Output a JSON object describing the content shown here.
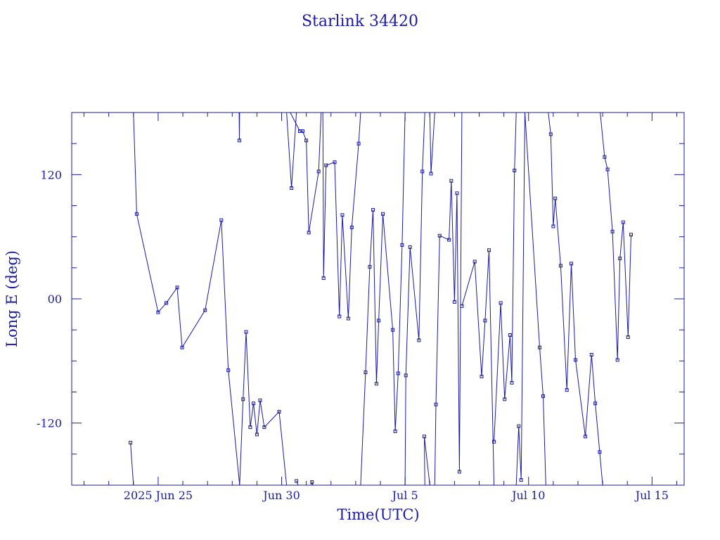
{
  "chart_data": {
    "type": "line",
    "title": "Starlink 34420",
    "xlabel": "Time(UTC)",
    "ylabel": "Long E (deg)",
    "colors": {
      "line": "#1a1aa6",
      "frame": "#1a1aa6",
      "background": "#ffffff"
    },
    "x_unit": "days since 2025 Jun 25 00:00 UTC",
    "xlim": [
      -3.5,
      21.3
    ],
    "ylim": [
      -180,
      180
    ],
    "grid": false,
    "x_ticks": [
      {
        "label": "2025 Jun 25",
        "value": 0
      },
      {
        "label": "Jun 30",
        "value": 5
      },
      {
        "label": "Jul 5",
        "value": 10
      },
      {
        "label": "Jul 10",
        "value": 15
      },
      {
        "label": "Jul 15",
        "value": 20
      }
    ],
    "y_ticks": [
      {
        "label": "-120",
        "value": -120
      },
      {
        "label": "00",
        "value": 0
      },
      {
        "label": "120",
        "value": 120
      }
    ],
    "series": [
      {
        "values": [
          [
            -1.12,
            -139
          ],
          [
            -1.0,
            -180
          ],
          null,
          [
            -1.0,
            180
          ],
          [
            -0.87,
            82
          ],
          [
            0.0,
            -13
          ],
          [
            0.33,
            -4
          ],
          [
            0.77,
            11
          ],
          [
            0.97,
            -47
          ],
          [
            1.9,
            -11
          ],
          [
            2.56,
            76
          ],
          [
            2.84,
            -69
          ],
          [
            3.3,
            -180
          ],
          null,
          [
            3.28,
            180
          ],
          [
            3.29,
            153
          ],
          [
            3.3,
            180
          ],
          null,
          [
            3.3,
            -180
          ],
          [
            3.44,
            -97
          ],
          [
            3.56,
            -32
          ],
          [
            3.73,
            -124
          ],
          [
            3.86,
            -101
          ],
          [
            4.0,
            -131
          ],
          [
            4.13,
            -98
          ],
          [
            4.3,
            -124
          ],
          [
            4.9,
            -109
          ],
          [
            5.2,
            -180
          ],
          null,
          [
            5.2,
            180
          ],
          [
            5.4,
            107
          ],
          [
            5.6,
            180
          ],
          null,
          [
            5.6,
            -176
          ],
          [
            5.67,
            -180
          ],
          null,
          [
            6.2,
            -180
          ],
          [
            6.23,
            -177
          ],
          [
            6.27,
            -180
          ],
          null,
          [
            5.35,
            180
          ],
          [
            5.74,
            162
          ],
          [
            5.85,
            162
          ],
          [
            6.0,
            153
          ],
          [
            6.1,
            64
          ],
          [
            6.5,
            123
          ],
          [
            6.6,
            180
          ],
          null,
          [
            6.67,
            180
          ],
          [
            6.7,
            20
          ],
          [
            6.8,
            129
          ],
          [
            7.15,
            132
          ],
          [
            7.34,
            -17
          ],
          [
            7.46,
            81
          ],
          [
            7.7,
            -19
          ],
          [
            7.84,
            69
          ],
          [
            8.12,
            150
          ],
          [
            8.2,
            180
          ],
          null,
          [
            8.2,
            -180
          ],
          [
            8.4,
            -71
          ],
          [
            8.57,
            31
          ],
          [
            8.7,
            86
          ],
          [
            8.84,
            -82
          ],
          [
            8.93,
            -21
          ],
          [
            9.1,
            82
          ],
          [
            9.5,
            -30
          ],
          [
            9.6,
            -128
          ],
          [
            9.72,
            -72
          ],
          [
            9.88,
            52
          ],
          [
            10.0,
            180
          ],
          null,
          [
            10.0,
            -180
          ],
          [
            10.03,
            -74
          ],
          [
            10.2,
            50
          ],
          [
            10.56,
            -40
          ],
          [
            10.7,
            123
          ],
          [
            10.8,
            180
          ],
          null,
          [
            10.8,
            -180
          ],
          [
            10.78,
            -133
          ],
          [
            11.0,
            -180
          ],
          null,
          [
            11.0,
            180
          ],
          [
            11.05,
            121
          ],
          [
            11.2,
            180
          ],
          null,
          [
            11.2,
            -180
          ],
          [
            11.25,
            -102
          ],
          [
            11.4,
            61
          ],
          [
            11.78,
            57
          ],
          [
            11.87,
            114
          ],
          [
            12.0,
            -3
          ],
          [
            12.1,
            102
          ],
          [
            12.2,
            -167
          ],
          [
            12.3,
            180
          ],
          null,
          [
            12.3,
            -7
          ],
          [
            12.82,
            36
          ],
          [
            13.1,
            -75
          ],
          [
            13.24,
            -21
          ],
          [
            13.4,
            47
          ],
          [
            13.6,
            -180
          ],
          null,
          [
            13.6,
            -138
          ],
          [
            13.87,
            -4
          ],
          [
            14.03,
            -97
          ],
          [
            14.25,
            -35
          ],
          [
            14.32,
            -81
          ],
          [
            14.43,
            124
          ],
          [
            14.5,
            180
          ],
          null,
          [
            14.5,
            -180
          ],
          [
            14.6,
            -123
          ],
          [
            14.7,
            -175
          ],
          [
            14.85,
            180
          ],
          [
            15.45,
            -47
          ],
          [
            15.59,
            -94
          ],
          [
            15.7,
            -180
          ],
          null,
          [
            15.8,
            180
          ],
          [
            15.9,
            159
          ],
          [
            16.0,
            70
          ],
          [
            16.08,
            97
          ],
          [
            16.3,
            32
          ],
          [
            16.55,
            -88
          ],
          [
            16.73,
            34
          ],
          [
            16.9,
            -59
          ],
          [
            17.3,
            -133
          ],
          [
            17.55,
            -54
          ],
          [
            17.7,
            -101
          ],
          [
            17.88,
            -148
          ],
          [
            18.0,
            -180
          ],
          null,
          [
            17.9,
            180
          ],
          [
            18.08,
            137
          ],
          [
            18.2,
            125
          ],
          [
            18.4,
            65
          ],
          [
            18.6,
            -59
          ],
          [
            18.7,
            39
          ],
          [
            18.83,
            74
          ],
          [
            19.03,
            -37
          ],
          [
            19.15,
            62
          ]
        ]
      }
    ]
  }
}
